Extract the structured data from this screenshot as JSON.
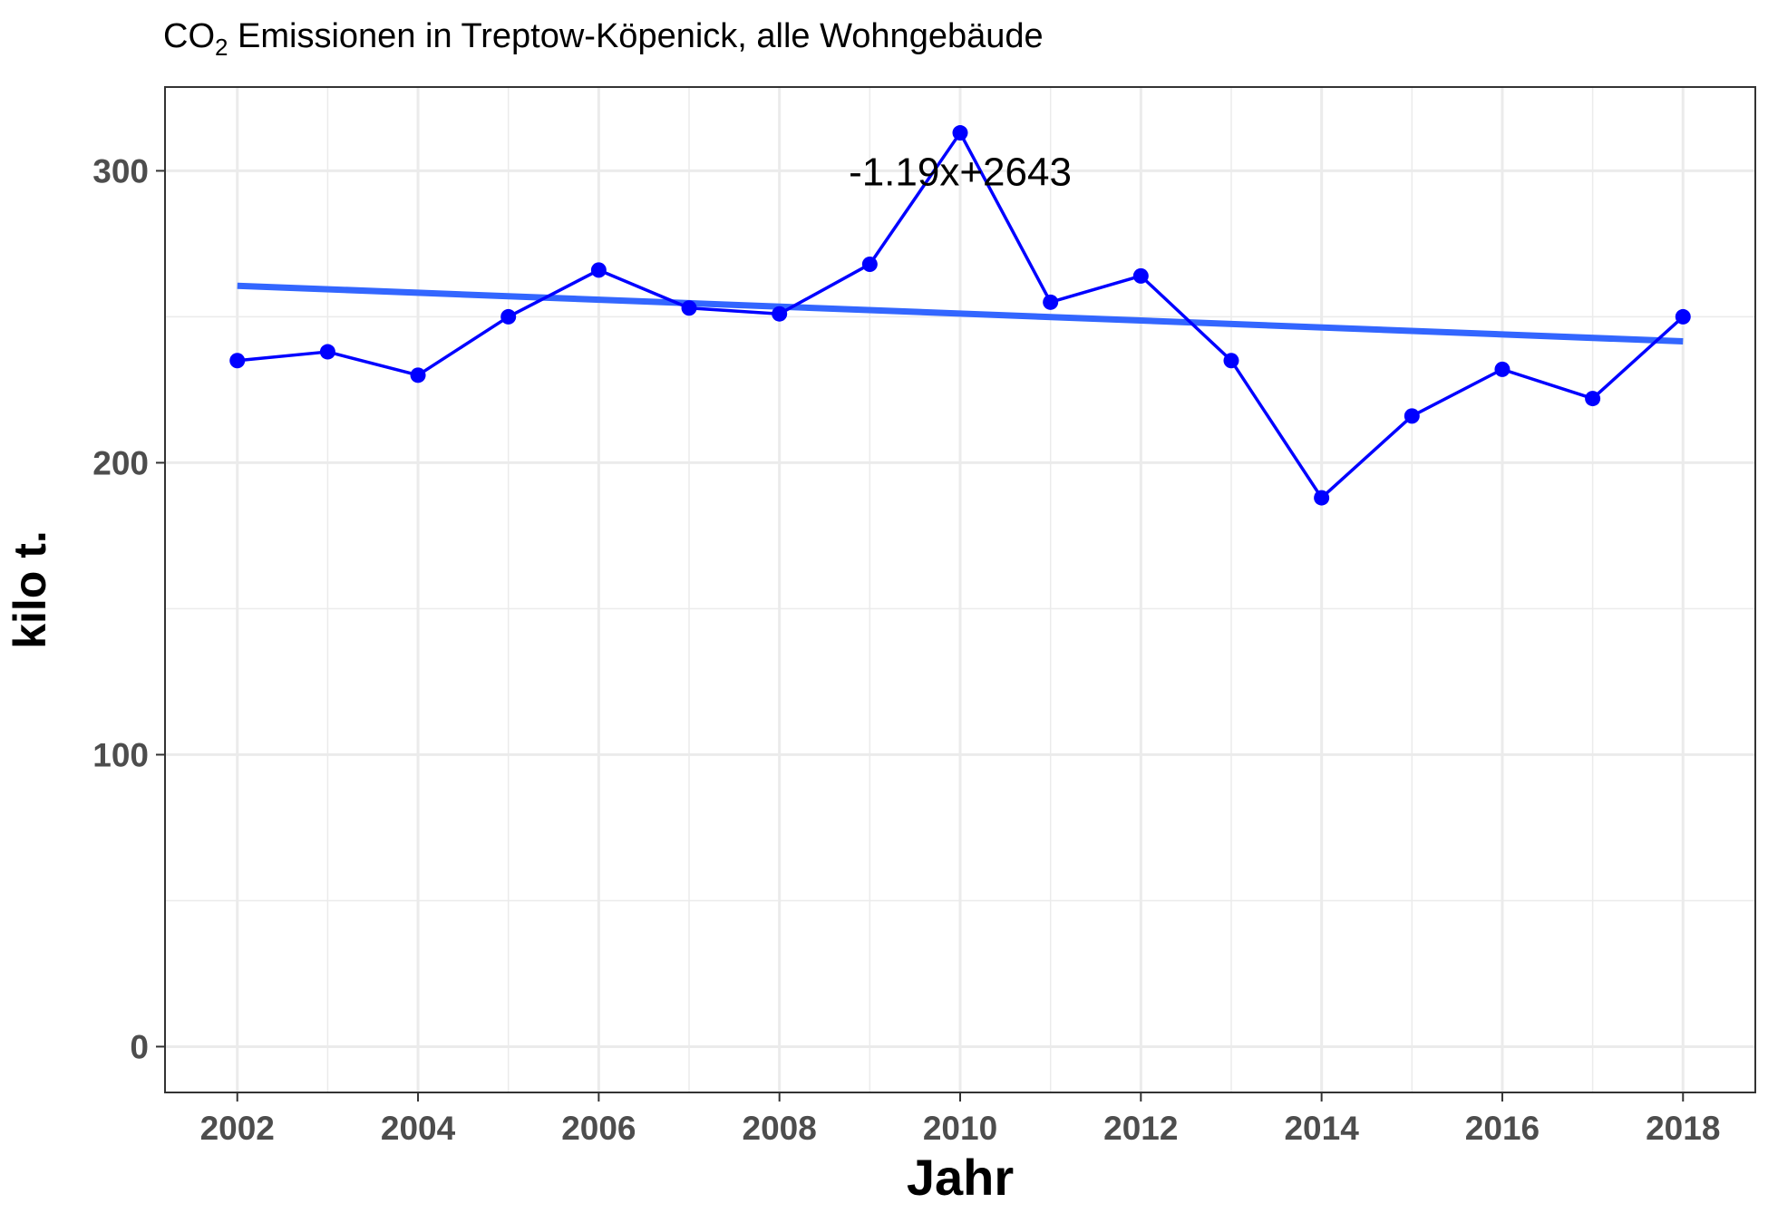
{
  "chart_data": {
    "type": "line",
    "title": {
      "prefix": "CO",
      "subscript": "2",
      "suffix": " Emissionen in Treptow-Köpenick, alle Wohngebäude"
    },
    "xlabel": "Jahr",
    "ylabel": "kilo t.",
    "x": [
      2002,
      2003,
      2004,
      2005,
      2006,
      2007,
      2008,
      2009,
      2010,
      2011,
      2012,
      2013,
      2014,
      2015,
      2016,
      2017,
      2018
    ],
    "series": [
      {
        "values": [
          235,
          238,
          230,
          250,
          266,
          253,
          251,
          268,
          313,
          255,
          264,
          235,
          188,
          216,
          232,
          222,
          250
        ],
        "color": "#0000ff",
        "marker": "circle"
      }
    ],
    "trend_line": {
      "slope": -1.19,
      "intercept": 2643,
      "color": "#3366ff"
    },
    "annotation": {
      "text": "-1.19x+2643",
      "x": 2010,
      "y": 300
    },
    "x_ticks": [
      2002,
      2004,
      2006,
      2008,
      2010,
      2012,
      2014,
      2016,
      2018
    ],
    "x_tick_labels": [
      "2002",
      "2004",
      "2006",
      "2008",
      "2010",
      "2012",
      "2014",
      "2016",
      "2018"
    ],
    "y_ticks": [
      0,
      100,
      200,
      300
    ],
    "y_tick_labels": [
      "0",
      "100",
      "200",
      "300"
    ],
    "xlim": [
      2001.2,
      2018.8
    ],
    "ylim": [
      -15.7,
      328.7
    ],
    "grid": true,
    "legend": "none",
    "background": "#ffffff",
    "grid_color": "#ebebeb"
  }
}
